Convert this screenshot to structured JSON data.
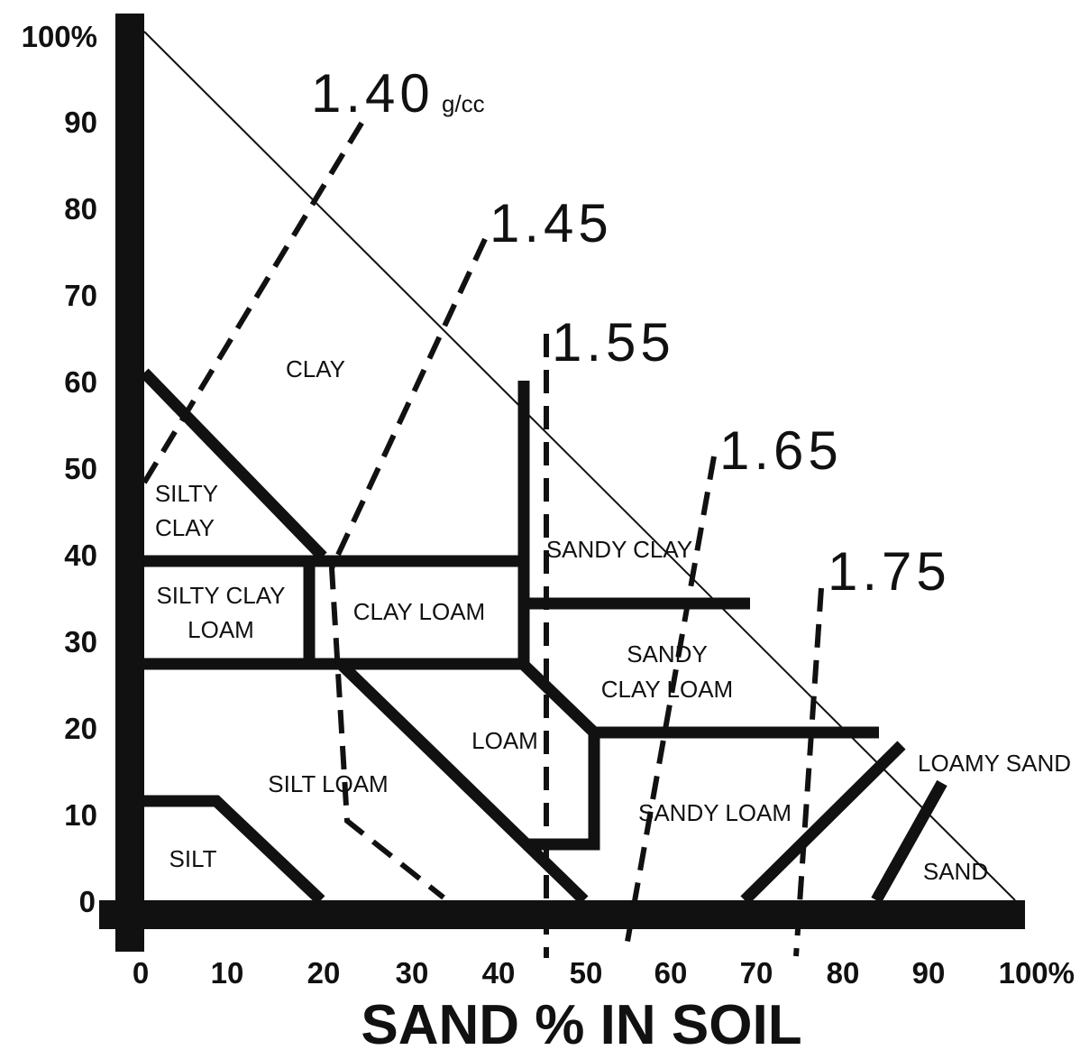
{
  "diagram": {
    "x_axis": {
      "title": "SAND % IN SOIL",
      "ticks": [
        "0",
        "10",
        "20",
        "30",
        "40",
        "50",
        "60",
        "70",
        "80",
        "90",
        "100%"
      ]
    },
    "y_axis": {
      "ticks": [
        "0",
        "10",
        "20",
        "30",
        "40",
        "50",
        "60",
        "70",
        "80",
        "90",
        "100%"
      ]
    },
    "regions": {
      "clay": "CLAY",
      "silty_clay": [
        "SILTY",
        "CLAY"
      ],
      "silty_clay_loam": [
        "SILTY CLAY",
        "LOAM"
      ],
      "clay_loam": "CLAY LOAM",
      "sandy_clay": "SANDY CLAY",
      "sandy_clay_loam": [
        "SANDY",
        "CLAY LOAM"
      ],
      "loam": "LOAM",
      "silt_loam": "SILT LOAM",
      "silt": "SILT",
      "sandy_loam": "SANDY LOAM",
      "loamy_sand": "LOAMY SAND",
      "sand": "SAND"
    },
    "density_lines": {
      "d140": "1.40",
      "d140_unit": "g/cc",
      "d145": "1.45",
      "d155": "1.55",
      "d165": "1.65",
      "d175": "1.75"
    }
  },
  "colors": {
    "ink": "#111111",
    "background": "#ffffff"
  }
}
